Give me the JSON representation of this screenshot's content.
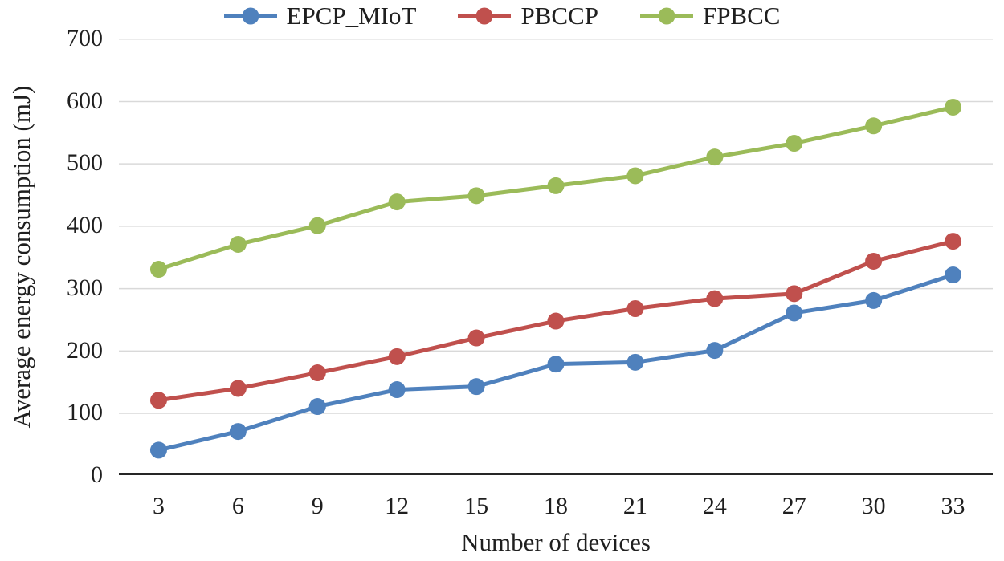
{
  "figure": {
    "title": ""
  },
  "chart_data": {
    "type": "line",
    "title": "",
    "xlabel": "Number of devices",
    "ylabel": "Average energy consumption (mJ)",
    "categories": [
      3,
      6,
      9,
      12,
      15,
      18,
      21,
      24,
      27,
      30,
      33
    ],
    "series": [
      {
        "name": "EPCP_MIoT",
        "color": "#4F81BD",
        "values": [
          40,
          70,
          110,
          137,
          142,
          178,
          181,
          200,
          260,
          280,
          321
        ]
      },
      {
        "name": "PBCCP",
        "color": "#C0504D",
        "values": [
          120,
          139,
          164,
          190,
          220,
          247,
          267,
          283,
          291,
          343,
          375
        ]
      },
      {
        "name": "FPBCC",
        "color": "#9BBB59",
        "values": [
          330,
          370,
          400,
          438,
          448,
          464,
          480,
          510,
          532,
          560,
          590
        ]
      }
    ],
    "ylim": [
      0,
      700
    ],
    "ytick_step": 100,
    "grid": true,
    "legend_position": "top",
    "colors": {
      "gridline": "#d9d9d9",
      "axis": "#262626",
      "text": "#1f1f1f"
    }
  }
}
